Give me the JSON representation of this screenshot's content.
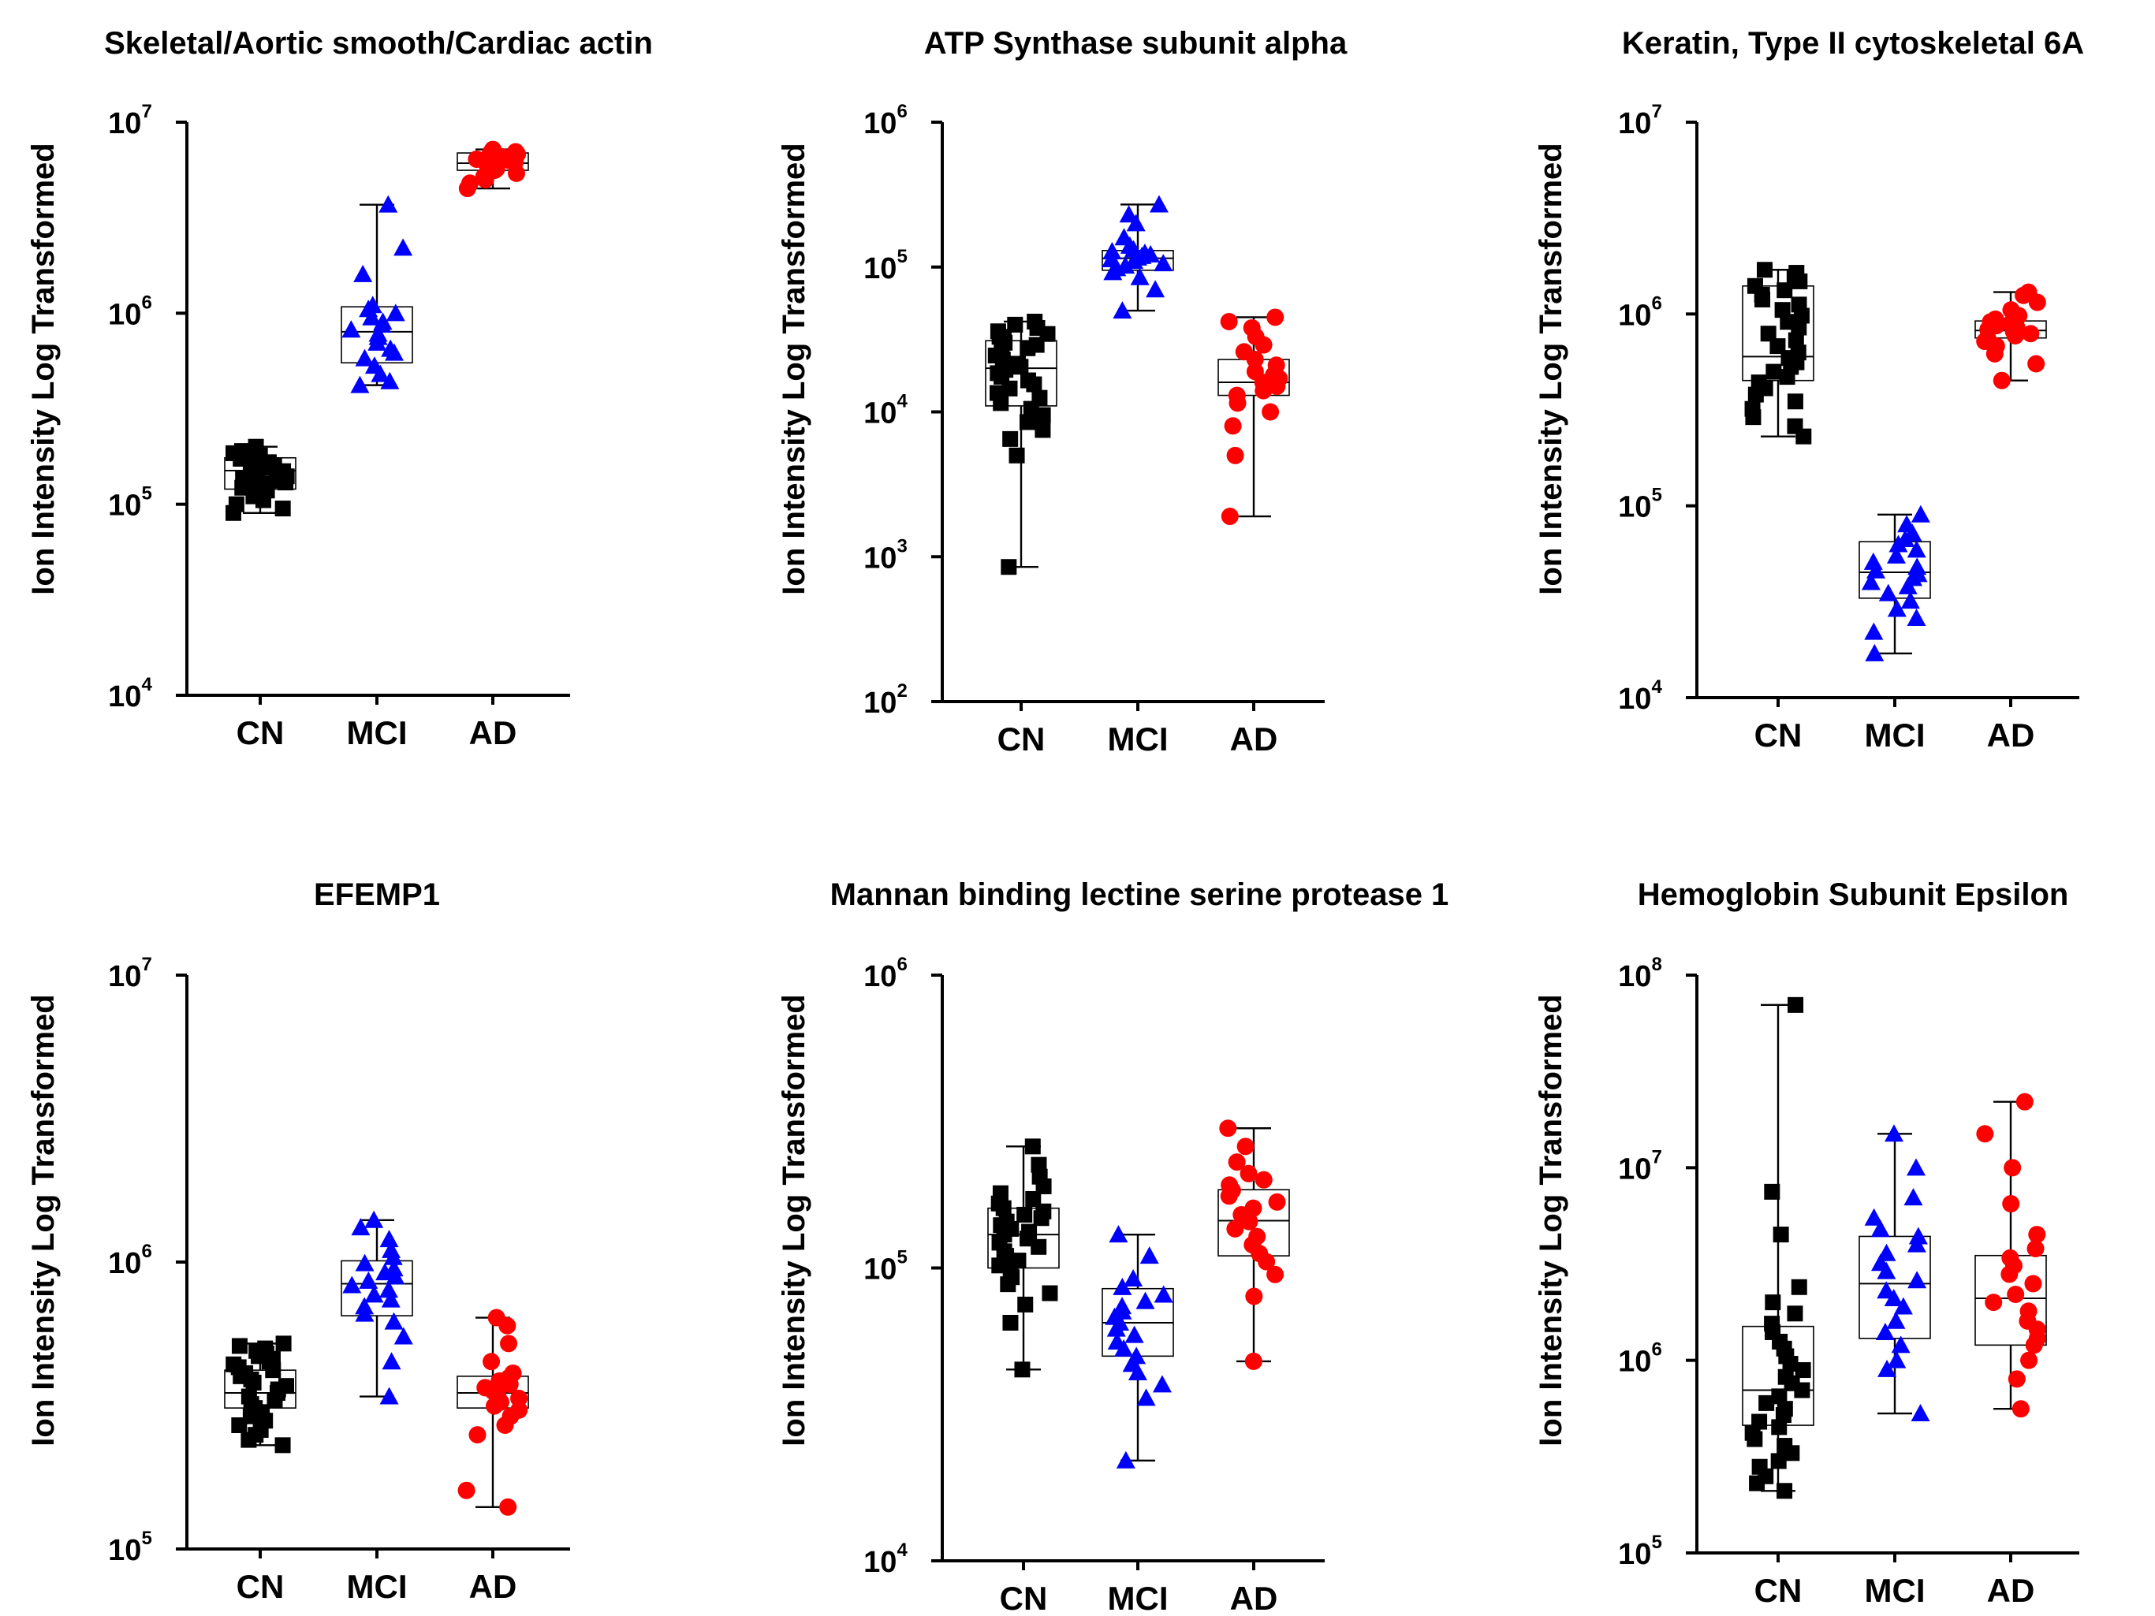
{
  "figure": {
    "y_axis_label": "Ion Intensity Log Transformed",
    "groups": [
      "CN",
      "MCI",
      "AD"
    ]
  },
  "colors": {
    "CN": "#000000",
    "MCI": "#0000ff",
    "AD": "#ff0000"
  },
  "markers": {
    "CN": "square",
    "MCI": "triangle",
    "AD": "circle"
  },
  "chart_data": [
    {
      "id": "actin",
      "type": "box_scatter",
      "title": "Skeletal/Aortic smooth/Cardiac actin",
      "ylabel": "Ion Intensity Log Transformed",
      "yscale": "log",
      "ylim_exp": [
        4,
        7
      ],
      "ytick_exps": [
        4,
        5,
        6,
        7
      ],
      "groups": [
        {
          "name": "CN",
          "box": [
            120000,
            150000,
            175000
          ],
          "whisker": [
            90000,
            200000
          ],
          "points": [
            90000,
            95000,
            100000,
            105000,
            110000,
            115000,
            118000,
            122000,
            125000,
            128000,
            130000,
            133000,
            136000,
            140000,
            143000,
            146000,
            149000,
            152000,
            155000,
            158000,
            160000,
            163000,
            166000,
            170000,
            173000,
            176000,
            180000,
            185000,
            190000,
            200000
          ]
        },
        {
          "name": "MCI",
          "box": [
            550000,
            800000,
            1080000
          ],
          "whisker": [
            420000,
            3700000
          ],
          "points": [
            420000,
            440000,
            480000,
            530000,
            580000,
            620000,
            650000,
            700000,
            750000,
            780000,
            820000,
            870000,
            900000,
            950000,
            1000000,
            1050000,
            1100000,
            1600000,
            2200000,
            3700000
          ]
        },
        {
          "name": "AD",
          "box": [
            5600000,
            6100000,
            6900000
          ],
          "whisker": [
            4500000,
            7200000
          ],
          "points": [
            4500000,
            4800000,
            5000000,
            5200000,
            5400000,
            5600000,
            5700000,
            5800000,
            5900000,
            6000000,
            6100000,
            6200000,
            6300000,
            6400000,
            6500000,
            6600000,
            6800000,
            6900000,
            7000000,
            7200000
          ]
        }
      ]
    },
    {
      "id": "atp",
      "type": "box_scatter",
      "title": "ATP Synthase  subunit  alpha",
      "ylabel": "Ion Intensity Log  Transformed",
      "yscale": "log",
      "ylim_exp": [
        2,
        6
      ],
      "ytick_exps": [
        2,
        3,
        4,
        5,
        6
      ],
      "groups": [
        {
          "name": "CN",
          "box": [
            11000,
            20000,
            31000
          ],
          "whisker": [
            850,
            42000
          ],
          "points": [
            850,
            5000,
            6500,
            7500,
            8500,
            9500,
            10500,
            11500,
            12500,
            13500,
            14500,
            15500,
            16500,
            17500,
            18500,
            19500,
            20500,
            21500,
            23000,
            24500,
            26000,
            27500,
            29000,
            30000,
            31500,
            33000,
            34500,
            36000,
            38000,
            40000,
            42000
          ]
        },
        {
          "name": "MCI",
          "box": [
            95000,
            115000,
            130000
          ],
          "whisker": [
            50000,
            270000
          ],
          "points": [
            50000,
            70000,
            85000,
            92000,
            98000,
            102000,
            106000,
            110000,
            113000,
            116000,
            119000,
            122000,
            125000,
            128000,
            132000,
            140000,
            160000,
            200000,
            230000,
            270000
          ]
        },
        {
          "name": "AD",
          "box": [
            13000,
            16000,
            23000
          ],
          "whisker": [
            1900,
            45000
          ],
          "points": [
            1900,
            5000,
            8000,
            10000,
            11500,
            13000,
            14000,
            15000,
            16000,
            17000,
            18000,
            19000,
            21000,
            23000,
            26000,
            29000,
            33000,
            38000,
            42000,
            45000
          ]
        }
      ]
    },
    {
      "id": "keratin",
      "type": "box_scatter",
      "title": "Keratin, Type II cytoskeletal 6A",
      "ylabel": "Ion Intensity Log  Transformed",
      "yscale": "log",
      "ylim_exp": [
        4,
        7
      ],
      "ytick_exps": [
        4,
        5,
        6,
        7
      ],
      "groups": [
        {
          "name": "CN",
          "box": [
            450000,
            600000,
            1400000
          ],
          "whisker": [
            230000,
            1700000
          ],
          "points": [
            230000,
            260000,
            290000,
            320000,
            350000,
            380000,
            410000,
            440000,
            470000,
            500000,
            530000,
            560000,
            590000,
            630000,
            680000,
            730000,
            790000,
            850000,
            910000,
            980000,
            1050000,
            1120000,
            1190000,
            1260000,
            1330000,
            1400000,
            1480000,
            1560000,
            1640000,
            1700000
          ]
        },
        {
          "name": "MCI",
          "box": [
            33000,
            45000,
            65000
          ],
          "whisker": [
            17000,
            90000
          ],
          "points": [
            17000,
            22000,
            26000,
            29000,
            32000,
            35000,
            38000,
            40000,
            42000,
            44000,
            46000,
            48000,
            51000,
            55000,
            59000,
            63000,
            67000,
            72000,
            80000,
            90000
          ]
        },
        {
          "name": "AD",
          "box": [
            750000,
            820000,
            920000
          ],
          "whisker": [
            450000,
            1300000
          ],
          "points": [
            450000,
            550000,
            620000,
            680000,
            720000,
            750000,
            770000,
            790000,
            810000,
            830000,
            850000,
            870000,
            890000,
            910000,
            940000,
            980000,
            1050000,
            1150000,
            1250000,
            1300000
          ]
        }
      ]
    },
    {
      "id": "efemp1",
      "type": "box_scatter",
      "title": "EFEMP1",
      "ylabel": "Ion Intensity Log  Transformed",
      "yscale": "log",
      "ylim_exp": [
        5,
        7
      ],
      "ytick_exps": [
        5,
        6,
        7
      ],
      "groups": [
        {
          "name": "CN",
          "box": [
            310000,
            350000,
            420000
          ],
          "whisker": [
            230000,
            520000
          ],
          "points": [
            230000,
            240000,
            250000,
            260000,
            270000,
            280000,
            290000,
            300000,
            310000,
            320000,
            330000,
            340000,
            350000,
            360000,
            370000,
            380000,
            390000,
            400000,
            410000,
            420000,
            430000,
            440000,
            450000,
            460000,
            470000,
            480000,
            490000,
            500000,
            510000,
            520000
          ]
        },
        {
          "name": "MCI",
          "box": [
            650000,
            840000,
            1010000
          ],
          "whisker": [
            340000,
            1400000
          ],
          "points": [
            340000,
            450000,
            550000,
            620000,
            660000,
            700000,
            740000,
            770000,
            800000,
            830000,
            860000,
            890000,
            920000,
            950000,
            990000,
            1040000,
            1100000,
            1200000,
            1320000,
            1400000
          ]
        },
        {
          "name": "AD",
          "box": [
            310000,
            350000,
            400000
          ],
          "whisker": [
            140000,
            640000
          ],
          "points": [
            140000,
            160000,
            250000,
            270000,
            290000,
            305000,
            315000,
            325000,
            335000,
            345000,
            355000,
            365000,
            375000,
            385000,
            395000,
            410000,
            450000,
            520000,
            600000,
            640000
          ]
        }
      ]
    },
    {
      "id": "masp1",
      "type": "box_scatter",
      "title": "Mannan binding lectine serine protease 1",
      "ylabel": "Ion Intensity Log  Transformed",
      "yscale": "log",
      "ylim_exp": [
        4,
        6
      ],
      "ytick_exps": [
        4,
        5,
        6
      ],
      "groups": [
        {
          "name": "CN",
          "box": [
            100000,
            130000,
            160000
          ],
          "whisker": [
            45000,
            260000
          ],
          "points": [
            45000,
            65000,
            75000,
            82000,
            88000,
            93000,
            98000,
            102000,
            106000,
            110000,
            114000,
            118000,
            122000,
            126000,
            130000,
            133000,
            136000,
            140000,
            144000,
            148000,
            152000,
            156000,
            160000,
            166000,
            172000,
            180000,
            190000,
            205000,
            225000,
            260000
          ]
        },
        {
          "name": "MCI",
          "box": [
            50000,
            65000,
            85000
          ],
          "whisker": [
            22000,
            130000
          ],
          "points": [
            22000,
            36000,
            40000,
            44000,
            47000,
            50000,
            53000,
            56000,
            59000,
            62000,
            65000,
            68000,
            71000,
            74000,
            77000,
            81000,
            86000,
            92000,
            110000,
            130000
          ]
        },
        {
          "name": "AD",
          "box": [
            110000,
            145000,
            185000
          ],
          "whisker": [
            48000,
            300000
          ],
          "points": [
            48000,
            80000,
            95000,
            105000,
            112000,
            120000,
            128000,
            136000,
            144000,
            152000,
            160000,
            168000,
            176000,
            184000,
            192000,
            200000,
            210000,
            230000,
            260000,
            300000
          ]
        }
      ]
    },
    {
      "id": "hbe",
      "type": "box_scatter",
      "title": "Hemoglobin Subunit Epsilon",
      "ylabel": "Ion Intensity Log  Transformed",
      "yscale": "log",
      "ylim_exp": [
        5,
        8
      ],
      "ytick_exps": [
        5,
        6,
        7,
        8
      ],
      "groups": [
        {
          "name": "CN",
          "box": [
            460000,
            700000,
            1500000
          ],
          "whisker": [
            210000,
            70000000
          ],
          "points": [
            210000,
            230000,
            250000,
            280000,
            300000,
            330000,
            360000,
            390000,
            420000,
            450000,
            480000,
            520000,
            560000,
            600000,
            650000,
            700000,
            760000,
            820000,
            890000,
            960000,
            1050000,
            1150000,
            1250000,
            1400000,
            1550000,
            1750000,
            2000000,
            2400000,
            4500000,
            7500000,
            70000000
          ]
        },
        {
          "name": "MCI",
          "box": [
            1300000,
            2500000,
            4400000
          ],
          "whisker": [
            530000,
            15000000
          ],
          "points": [
            530000,
            900000,
            1000000,
            1200000,
            1400000,
            1600000,
            1900000,
            2100000,
            2300000,
            2600000,
            2900000,
            3200000,
            3600000,
            4000000,
            4400000,
            4800000,
            5500000,
            7000000,
            10000000,
            15000000
          ]
        },
        {
          "name": "AD",
          "box": [
            1200000,
            2100000,
            3500000
          ],
          "whisker": [
            560000,
            22000000
          ],
          "points": [
            560000,
            800000,
            1000000,
            1200000,
            1300000,
            1450000,
            1600000,
            1800000,
            2000000,
            2200000,
            2500000,
            2800000,
            3100000,
            3400000,
            3800000,
            4500000,
            6500000,
            10000000,
            15000000,
            22000000
          ]
        }
      ]
    }
  ]
}
